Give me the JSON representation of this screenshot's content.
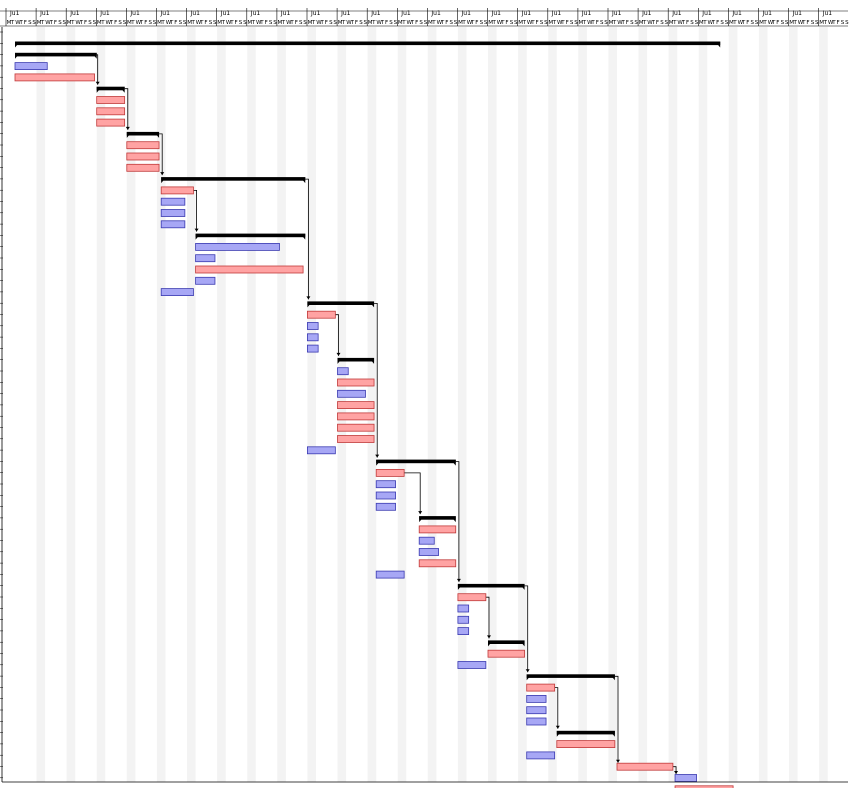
{
  "header": {
    "week_labels": [
      "Ju1",
      "Ju1",
      "Ju1",
      "Ju1",
      "Ju1",
      "Ju1",
      "Ju1",
      "Ju1",
      "Ju1",
      "Ju1",
      "Ju1",
      "Ju1",
      "Ju1",
      "Ju1",
      "Ju1",
      "Ju1",
      "Ju1",
      "Ju1",
      "Ju1",
      "Ju1",
      "Ju1",
      "Ju1",
      "Ju1",
      "Ju1",
      "Ju1",
      "Ju1",
      "Ju1",
      "Ju1"
    ],
    "day_letters": [
      "M",
      "T",
      "W",
      "T",
      "F",
      "S",
      "S"
    ]
  },
  "colors": {
    "blue_bar": "#a7a7f5",
    "blue_border": "#3a3ab0",
    "red_bar": "#ffa3a3",
    "red_border": "#c03a3a",
    "summary": "#000000",
    "stripe": "#f3f3f3",
    "link": "#000000"
  },
  "chart_data": {
    "type": "gantt",
    "unit": "day",
    "timeline_days": 196,
    "weekend_shading": true,
    "grid": true,
    "legend": "none",
    "tasks": [
      {
        "row": 0,
        "kind": "summary",
        "start": 0,
        "end": 164
      },
      {
        "row": 1,
        "kind": "summary",
        "start": 0,
        "end": 19
      },
      {
        "row": 2,
        "kind": "blue",
        "start": 0,
        "end": 7.5
      },
      {
        "row": 3,
        "kind": "red",
        "start": 0,
        "end": 18.5
      },
      {
        "row": 4,
        "kind": "summary",
        "start": 19,
        "end": 25.5
      },
      {
        "row": 5,
        "kind": "red",
        "start": 19,
        "end": 25.5
      },
      {
        "row": 6,
        "kind": "red",
        "start": 19,
        "end": 25.5
      },
      {
        "row": 7,
        "kind": "red",
        "start": 19,
        "end": 25.5
      },
      {
        "row": 8,
        "kind": "summary",
        "start": 26,
        "end": 33.5
      },
      {
        "row": 9,
        "kind": "red",
        "start": 26,
        "end": 33.5
      },
      {
        "row": 10,
        "kind": "red",
        "start": 26,
        "end": 33.5
      },
      {
        "row": 11,
        "kind": "red",
        "start": 26,
        "end": 33.5
      },
      {
        "row": 12,
        "kind": "summary",
        "start": 34,
        "end": 67.5
      },
      {
        "row": 13,
        "kind": "red",
        "start": 34,
        "end": 41.5
      },
      {
        "row": 14,
        "kind": "blue",
        "start": 34,
        "end": 39.5
      },
      {
        "row": 15,
        "kind": "blue",
        "start": 34,
        "end": 39.5
      },
      {
        "row": 16,
        "kind": "blue",
        "start": 34,
        "end": 39.5
      },
      {
        "row": 17,
        "kind": "summary",
        "start": 42,
        "end": 67.5
      },
      {
        "row": 18,
        "kind": "blue",
        "start": 42,
        "end": 61.5
      },
      {
        "row": 19,
        "kind": "blue",
        "start": 42,
        "end": 46.5
      },
      {
        "row": 20,
        "kind": "red",
        "start": 42,
        "end": 67
      },
      {
        "row": 21,
        "kind": "blue",
        "start": 42,
        "end": 46.5
      },
      {
        "row": 22,
        "kind": "blue",
        "start": 34,
        "end": 41.5
      },
      {
        "row": 23,
        "kind": "summary",
        "start": 68,
        "end": 83.5
      },
      {
        "row": 24,
        "kind": "red",
        "start": 68,
        "end": 74.5
      },
      {
        "row": 25,
        "kind": "blue",
        "start": 68,
        "end": 70.5
      },
      {
        "row": 26,
        "kind": "blue",
        "start": 68,
        "end": 70.5
      },
      {
        "row": 27,
        "kind": "blue",
        "start": 68,
        "end": 70.5
      },
      {
        "row": 28,
        "kind": "summary",
        "start": 75,
        "end": 83.5
      },
      {
        "row": 29,
        "kind": "blue",
        "start": 75,
        "end": 77.5
      },
      {
        "row": 30,
        "kind": "red",
        "start": 75,
        "end": 83.5
      },
      {
        "row": 31,
        "kind": "blue",
        "start": 75,
        "end": 81.5
      },
      {
        "row": 32,
        "kind": "red",
        "start": 75,
        "end": 83.5
      },
      {
        "row": 33,
        "kind": "red",
        "start": 75,
        "end": 83.5
      },
      {
        "row": 34,
        "kind": "red",
        "start": 75,
        "end": 83.5
      },
      {
        "row": 35,
        "kind": "red",
        "start": 75,
        "end": 83.5
      },
      {
        "row": 36,
        "kind": "blue",
        "start": 68,
        "end": 74.5
      },
      {
        "row": 37,
        "kind": "summary",
        "start": 84,
        "end": 102.5
      },
      {
        "row": 38,
        "kind": "red",
        "start": 84,
        "end": 90.5
      },
      {
        "row": 39,
        "kind": "blue",
        "start": 84,
        "end": 88.5
      },
      {
        "row": 40,
        "kind": "blue",
        "start": 84,
        "end": 88.5
      },
      {
        "row": 41,
        "kind": "blue",
        "start": 84,
        "end": 88.5
      },
      {
        "row": 42,
        "kind": "summary",
        "start": 94,
        "end": 102.5
      },
      {
        "row": 43,
        "kind": "red",
        "start": 94,
        "end": 102.5
      },
      {
        "row": 44,
        "kind": "blue",
        "start": 94,
        "end": 97.5
      },
      {
        "row": 45,
        "kind": "blue",
        "start": 94,
        "end": 98.5
      },
      {
        "row": 46,
        "kind": "red",
        "start": 94,
        "end": 102.5
      },
      {
        "row": 47,
        "kind": "blue",
        "start": 84,
        "end": 90.5
      },
      {
        "row": 48,
        "kind": "summary",
        "start": 103,
        "end": 118.5
      },
      {
        "row": 49,
        "kind": "red",
        "start": 103,
        "end": 109.5
      },
      {
        "row": 50,
        "kind": "blue",
        "start": 103,
        "end": 105.5
      },
      {
        "row": 51,
        "kind": "blue",
        "start": 103,
        "end": 105.5
      },
      {
        "row": 52,
        "kind": "blue",
        "start": 103,
        "end": 105.5
      },
      {
        "row": 53,
        "kind": "summary",
        "start": 110,
        "end": 118.5
      },
      {
        "row": 54,
        "kind": "red",
        "start": 110,
        "end": 118.5
      },
      {
        "row": 55,
        "kind": "blue",
        "start": 103,
        "end": 109.5
      },
      {
        "row": 56,
        "kind": "summary",
        "start": 119,
        "end": 139.5
      },
      {
        "row": 57,
        "kind": "red",
        "start": 119,
        "end": 125.5
      },
      {
        "row": 58,
        "kind": "blue",
        "start": 119,
        "end": 123.5
      },
      {
        "row": 59,
        "kind": "blue",
        "start": 119,
        "end": 123.5
      },
      {
        "row": 60,
        "kind": "blue",
        "start": 119,
        "end": 123.5
      },
      {
        "row": 61,
        "kind": "summary",
        "start": 126,
        "end": 139.5
      },
      {
        "row": 62,
        "kind": "red",
        "start": 126,
        "end": 139.5
      },
      {
        "row": 63,
        "kind": "blue",
        "start": 119,
        "end": 125.5
      },
      {
        "row": 64,
        "kind": "red",
        "start": 140,
        "end": 153
      },
      {
        "row": 65,
        "kind": "blue",
        "start": 153.5,
        "end": 158.5
      },
      {
        "row": 66,
        "kind": "red",
        "start": 153.5,
        "end": 167
      }
    ],
    "links": [
      {
        "from": 1,
        "to": 4
      },
      {
        "from": 4,
        "to": 8
      },
      {
        "from": 8,
        "to": 12
      },
      {
        "from": 13,
        "to": 17
      },
      {
        "from": 12,
        "to": 23
      },
      {
        "from": 24,
        "to": 28
      },
      {
        "from": 23,
        "to": 37
      },
      {
        "from": 38,
        "to": 42
      },
      {
        "from": 37,
        "to": 48
      },
      {
        "from": 49,
        "to": 53
      },
      {
        "from": 48,
        "to": 56
      },
      {
        "from": 57,
        "to": 61
      },
      {
        "from": 56,
        "to": 64
      },
      {
        "from": 64,
        "to": 65
      }
    ]
  }
}
